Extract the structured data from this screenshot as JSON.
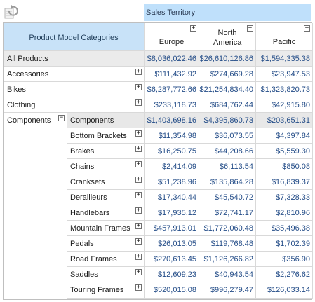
{
  "header": {
    "refresh_icon": "refresh-icon",
    "column_axis_label": "Sales Territory",
    "row_axis_label": "Product Model Categories",
    "columns": [
      "Europe",
      "North America",
      "Pacific"
    ]
  },
  "all_products": {
    "label": "All Products",
    "values": [
      "$8,036,022.46",
      "$26,610,126.86",
      "$1,594,335.38"
    ]
  },
  "top_rows": [
    {
      "label": "Accessories",
      "values": [
        "$111,432.92",
        "$274,669.28",
        "$23,947.53"
      ]
    },
    {
      "label": "Bikes",
      "values": [
        "$6,287,772.66",
        "$21,254,834.40",
        "$1,323,820.73"
      ]
    },
    {
      "label": "Clothing",
      "values": [
        "$233,118.73",
        "$684,762.44",
        "$42,915.80"
      ]
    }
  ],
  "components": {
    "label": "Components",
    "total_label": "Components",
    "total_values": [
      "$1,403,698.16",
      "$4,395,860.73",
      "$203,651.31"
    ],
    "children": [
      {
        "label": "Bottom Brackets",
        "values": [
          "$11,354.98",
          "$36,073.55",
          "$4,397.84"
        ]
      },
      {
        "label": "Brakes",
        "values": [
          "$16,250.75",
          "$44,208.66",
          "$5,559.30"
        ]
      },
      {
        "label": "Chains",
        "values": [
          "$2,414.09",
          "$6,113.54",
          "$850.08"
        ]
      },
      {
        "label": "Cranksets",
        "values": [
          "$51,238.96",
          "$135,864.28",
          "$16,839.37"
        ]
      },
      {
        "label": "Derailleurs",
        "values": [
          "$17,340.44",
          "$45,540.72",
          "$7,328.33"
        ]
      },
      {
        "label": "Handlebars",
        "values": [
          "$17,935.12",
          "$72,741.17",
          "$2,810.96"
        ]
      },
      {
        "label": "Mountain Frames",
        "values": [
          "$457,913.01",
          "$1,772,060.48",
          "$35,496.38"
        ]
      },
      {
        "label": "Pedals",
        "values": [
          "$26,013.05",
          "$119,768.48",
          "$1,702.39"
        ]
      },
      {
        "label": "Road Frames",
        "values": [
          "$270,613.45",
          "$1,126,266.82",
          "$356.90"
        ]
      },
      {
        "label": "Saddles",
        "values": [
          "$12,609.23",
          "$40,943.54",
          "$2,276.62"
        ]
      },
      {
        "label": "Touring Frames",
        "values": [
          "$520,015.08",
          "$996,279.47",
          "$126,033.14"
        ]
      }
    ]
  },
  "colors": {
    "header_fill": "#c8e2f8",
    "territory_fill": "#bfe0fb",
    "value_text": "#244d88",
    "total_fill": "#ebebeb"
  }
}
